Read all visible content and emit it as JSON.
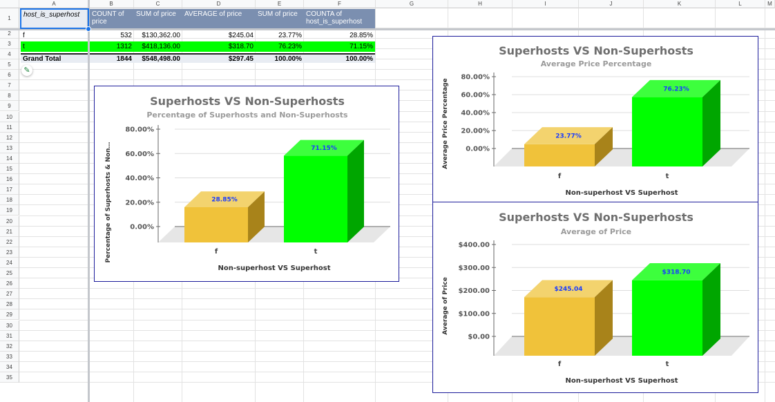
{
  "columns": [
    "A",
    "B",
    "C",
    "D",
    "E",
    "F",
    "G",
    "H",
    "I",
    "J",
    "K",
    "L",
    "M"
  ],
  "rows": [
    "1",
    "2",
    "3",
    "4",
    "5",
    "6",
    "7",
    "8",
    "9",
    "10",
    "11",
    "12",
    "13",
    "14",
    "15",
    "16",
    "17",
    "18",
    "19",
    "20",
    "21",
    "22",
    "23",
    "24",
    "25",
    "26",
    "27",
    "28",
    "29",
    "30",
    "31",
    "32",
    "33",
    "34",
    "35"
  ],
  "pivot": {
    "headers": [
      "host_is_superhost",
      "COUNT of price",
      "SUM of price",
      "AVERAGE of price",
      "SUM of price",
      "COUNTA of host_is_superhost"
    ],
    "rows": [
      {
        "label": "f",
        "count": "532",
        "sum": "$130,362.00",
        "avg": "$245.04",
        "sum_pct": "23.77%",
        "counta": "28.85%"
      },
      {
        "label": "t",
        "count": "1312",
        "sum": "$418,136.00",
        "avg": "$318.70",
        "sum_pct": "76.23%",
        "counta": "71.15%"
      },
      {
        "label": "Grand Total",
        "count": "1844",
        "sum": "$548,498.00",
        "avg": "$297.45",
        "sum_pct": "100.00%",
        "counta": "100.00%"
      }
    ]
  },
  "colors": {
    "f_bar": "#f0c030",
    "t_bar": "#00ff00",
    "t_row": "#00ff00",
    "header": "#7b8fb0",
    "chart_border": "#1a1a9a"
  },
  "chart_data": [
    {
      "type": "bar",
      "title": "Superhosts VS Non-Superhosts",
      "subtitle": "Percentage of Superhosts and Non-Superhosts",
      "xlabel": "Non-superhost VS Superhost",
      "ylabel": "Percentage of Superhosts & Non…",
      "categories": [
        "f",
        "t"
      ],
      "values": [
        28.85,
        71.15
      ],
      "data_labels": [
        "28.85%",
        "71.15%"
      ],
      "yticks": [
        "0.00%",
        "20.00%",
        "40.00%",
        "60.00%",
        "80.00%"
      ],
      "ylim": [
        0,
        80
      ]
    },
    {
      "type": "bar",
      "title": "Superhosts VS Non-Superhosts",
      "subtitle": "Average Price Percentage",
      "xlabel": "Non-superhost VS Superhost",
      "ylabel": "Average Price Percentage",
      "categories": [
        "f",
        "t"
      ],
      "values": [
        23.77,
        76.23
      ],
      "data_labels": [
        "23.77%",
        "76.23%"
      ],
      "yticks": [
        "0.00%",
        "20.00%",
        "40.00%",
        "60.00%",
        "80.00%"
      ],
      "ylim": [
        0,
        80
      ]
    },
    {
      "type": "bar",
      "title": "Superhosts VS Non-Superhosts",
      "subtitle": "Average of Price",
      "xlabel": "Non-superhost VS Superhost",
      "ylabel": "Average of Price",
      "categories": [
        "f",
        "t"
      ],
      "values": [
        245.04,
        318.7
      ],
      "data_labels": [
        "$245.04",
        "$318.70"
      ],
      "yticks": [
        "$0.00",
        "$100.00",
        "$200.00",
        "$300.00",
        "$400.00"
      ],
      "ylim": [
        0,
        400
      ]
    }
  ]
}
